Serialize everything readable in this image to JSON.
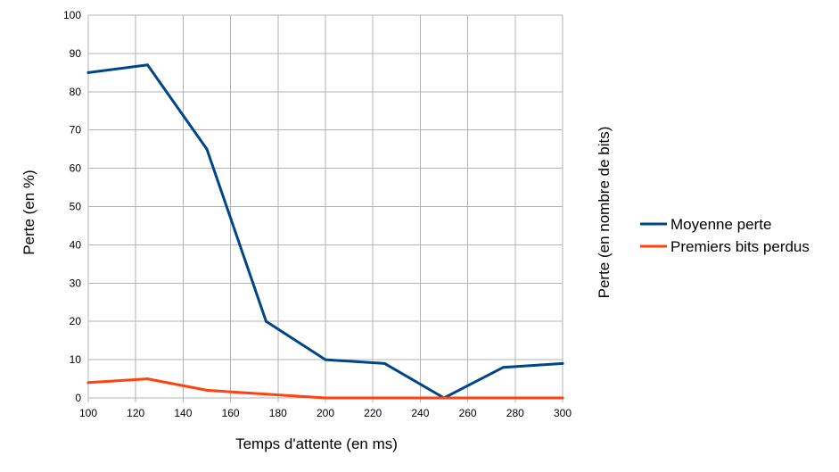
{
  "chart_data": {
    "type": "line",
    "title": "",
    "xlabel": "Temps d'attente (en ms)",
    "ylabel": "Perte (en %)",
    "y2label": "Perte (en nombre de bits)",
    "xlim": [
      100,
      300
    ],
    "ylim": [
      0,
      100
    ],
    "x_ticks": [
      "100",
      "120",
      "140",
      "160",
      "180",
      "200",
      "220",
      "240",
      "260",
      "280",
      "300"
    ],
    "y_ticks": [
      "0",
      "10",
      "20",
      "30",
      "40",
      "50",
      "60",
      "70",
      "80",
      "90",
      "100"
    ],
    "grid": true,
    "legend_position": "right",
    "series": [
      {
        "name": "Moyenne perte",
        "color": "#004586",
        "x": [
          100,
          125,
          150,
          175,
          200,
          225,
          250,
          275,
          300
        ],
        "y": [
          85,
          87,
          65,
          20,
          10,
          9,
          0,
          8,
          9
        ]
      },
      {
        "name": "Premiers bits perdus",
        "color": "#ff420e",
        "x": [
          100,
          125,
          150,
          175,
          200,
          225,
          250,
          275,
          300
        ],
        "y": [
          4,
          5,
          2,
          1,
          0,
          0,
          0,
          0,
          0
        ]
      }
    ]
  }
}
